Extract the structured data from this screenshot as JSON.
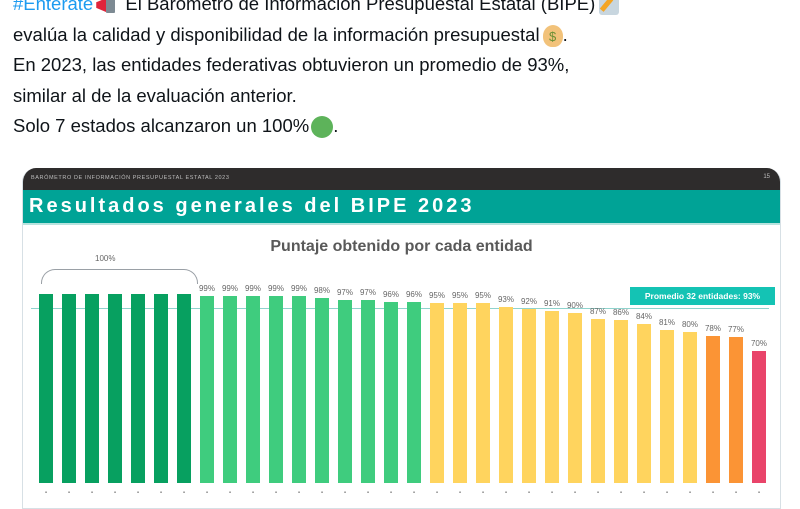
{
  "tweet": {
    "hashtag": "#Entérate",
    "line1_rest": " El Barómetro de Información Presupuestal Estatal (BIPE)",
    "line2": "evalúa la calidad y disponibilidad de la información presupuestal",
    "line2_end": ".",
    "line3": "En 2023, las entidades federativas obtuvieron un promedio de 93%,",
    "line4": "similar al de la evaluación anterior.",
    "line5": "Solo 7 estados alcanzaron un 100%",
    "line5_end": ".",
    "icons": [
      "megaphone-icon",
      "pencil-icon",
      "money-bag-icon",
      "green-circle-icon"
    ]
  },
  "card": {
    "header_small": "BARÓMETRO DE INFORMACIÓN PRESUPUESTAL ESTATAL 2023",
    "page_number": "15",
    "title": "Resultados generales del BIPE 2023",
    "colors": {
      "header_dark": "#2e2c2c",
      "band": "#00a396"
    }
  },
  "chart_data": {
    "type": "bar",
    "title": "Puntaje obtenido por cada entidad",
    "xlabel": "",
    "ylabel": "",
    "ylim": [
      0,
      100
    ],
    "grid": false,
    "bracket_label": "100%",
    "average": {
      "value": 93,
      "label": "Promedio 32 entidades: 93%"
    },
    "categories": [
      "1",
      "2",
      "3",
      "4",
      "5",
      "6",
      "7",
      "8",
      "9",
      "10",
      "11",
      "12",
      "13",
      "14",
      "15",
      "16",
      "17",
      "18",
      "19",
      "20",
      "21",
      "22",
      "23",
      "24",
      "25",
      "26",
      "27",
      "28",
      "29",
      "30",
      "31",
      "32"
    ],
    "values": [
      100,
      100,
      100,
      100,
      100,
      100,
      100,
      99,
      99,
      99,
      99,
      99,
      98,
      97,
      97,
      96,
      96,
      95,
      95,
      95,
      93,
      92,
      91,
      90,
      87,
      86,
      84,
      81,
      80,
      78,
      77,
      70
    ],
    "labels": [
      "",
      "",
      "",
      "",
      "",
      "",
      "",
      "99%",
      "99%",
      "99%",
      "99%",
      "99%",
      "98%",
      "97%",
      "97%",
      "96%",
      "96%",
      "95%",
      "95%",
      "95%",
      "93%",
      "92%",
      "91%",
      "90%",
      "87%",
      "86%",
      "84%",
      "81%",
      "80%",
      "78%",
      "77%",
      "70%"
    ],
    "bar_colors": {
      "100": "#07a060",
      "96-99": "#3fcc7e",
      "80-95": "#ffd45e",
      "77-78": "#fb9435",
      "70": "#e9446a"
    }
  }
}
